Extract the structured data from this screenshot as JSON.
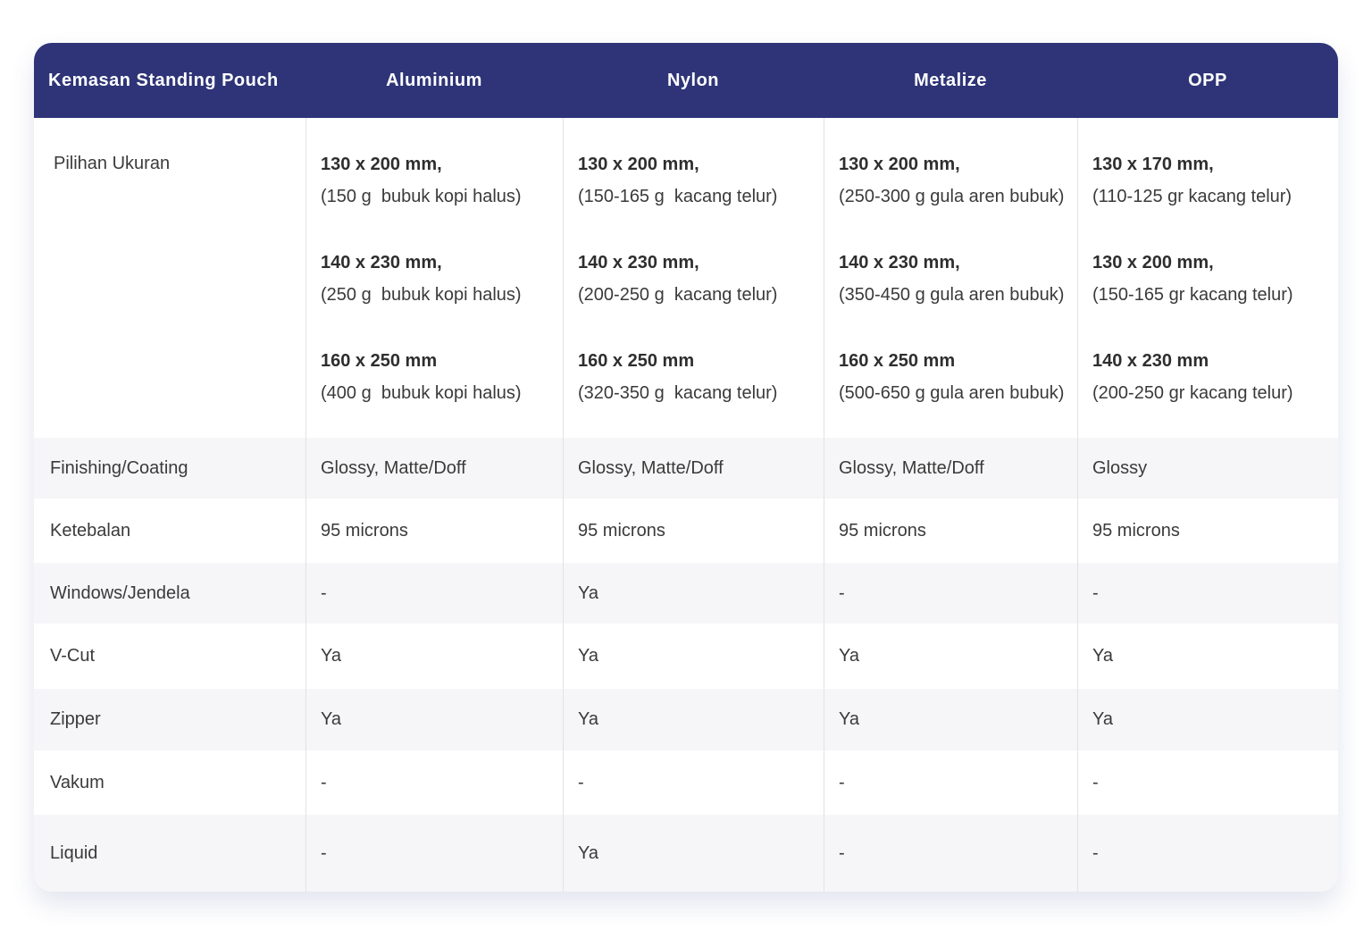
{
  "table": {
    "header": [
      "Kemasan Standing Pouch",
      "Aluminium",
      "Nylon",
      "Metalize",
      "OPP"
    ],
    "size_row": {
      "label": "Pilihan Ukuran",
      "cells": [
        [
          {
            "size": "130 x 200 mm,",
            "note": "(150 g  bubuk kopi halus)"
          },
          {
            "size": "140 x 230 mm,",
            "note": "(250 g  bubuk kopi halus)"
          },
          {
            "size": "160 x 250 mm",
            "note": "(400 g  bubuk kopi halus)"
          }
        ],
        [
          {
            "size": "130 x 200 mm,",
            "note": "(150-165 g  kacang telur)"
          },
          {
            "size": "140 x 230 mm,",
            "note": "(200-250 g  kacang telur)"
          },
          {
            "size": "160 x 250 mm",
            "note": "(320-350 g  kacang telur)"
          }
        ],
        [
          {
            "size": "130 x 200 mm,",
            "note": "(250-300 g gula aren bubuk)"
          },
          {
            "size": "140 x 230 mm,",
            "note": "(350-450 g gula aren bubuk)"
          },
          {
            "size": "160 x 250 mm",
            "note": "(500-650 g gula aren bubuk)"
          }
        ],
        [
          {
            "size": "130 x 170 mm,",
            "note": "(110-125 gr kacang telur)"
          },
          {
            "size": "130 x 200 mm,",
            "note": "(150-165 gr kacang telur)"
          },
          {
            "size": "140 x 230 mm",
            "note": "(200-250 gr kacang telur)"
          }
        ]
      ]
    },
    "rows": [
      [
        "Finishing/Coating",
        "Glossy, Matte/Doff",
        "Glossy, Matte/Doff",
        "Glossy, Matte/Doff",
        "Glossy"
      ],
      [
        "Ketebalan",
        "95 microns",
        "95 microns",
        "95 microns",
        "95 microns"
      ],
      [
        "Windows/Jendela",
        "-",
        "Ya",
        "-",
        "-"
      ],
      [
        "V-Cut",
        "Ya",
        "Ya",
        "Ya",
        "Ya"
      ],
      [
        "Zipper",
        "Ya",
        "Ya",
        "Ya",
        "Ya"
      ],
      [
        "Vakum",
        "-",
        "-",
        "-",
        "-"
      ],
      [
        "Liquid",
        "-",
        "Ya",
        "-",
        "-"
      ]
    ]
  }
}
